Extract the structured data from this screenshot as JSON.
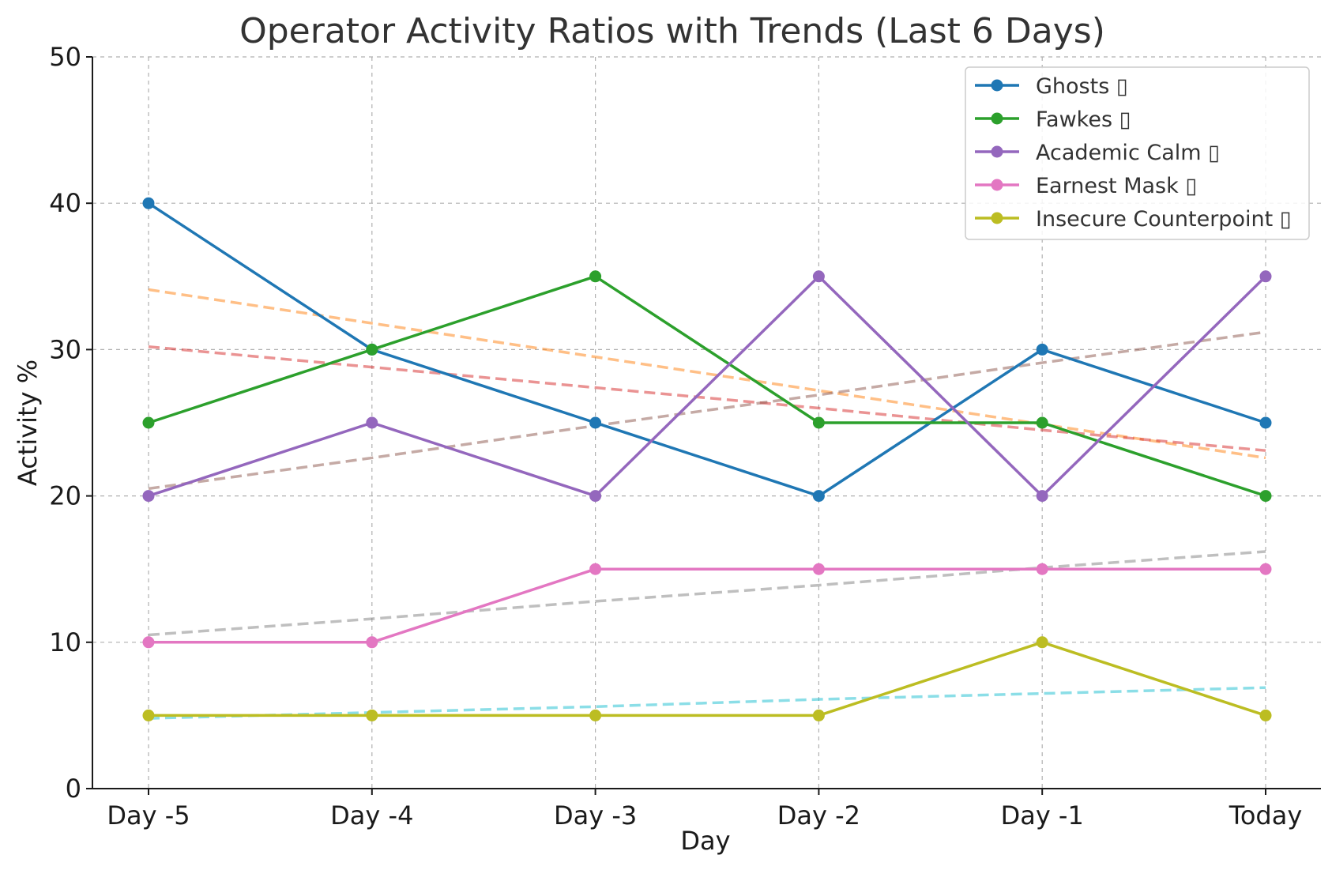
{
  "chart_data": {
    "type": "line",
    "title": "Operator Activity Ratios with Trends (Last 6 Days)",
    "xlabel": "Day",
    "ylabel": "Activity %",
    "categories": [
      "Day -5",
      "Day -4",
      "Day -3",
      "Day -2",
      "Day -1",
      "Today"
    ],
    "ylim": [
      0,
      50
    ],
    "yticks": [
      0,
      10,
      20,
      30,
      40,
      50
    ],
    "grid": true,
    "legend_position": "top-right",
    "series": [
      {
        "name": "Ghosts ▯",
        "color": "#1f77b4",
        "values": [
          40,
          30,
          25,
          20,
          30,
          25
        ]
      },
      {
        "name": "Fawkes ▯",
        "color": "#2ca02c",
        "values": [
          25,
          30,
          35,
          25,
          25,
          20
        ]
      },
      {
        "name": "Academic Calm ▯",
        "color": "#9467bd",
        "values": [
          20,
          25,
          20,
          35,
          20,
          35
        ]
      },
      {
        "name": "Earnest Mask ▯",
        "color": "#e377c2",
        "values": [
          10,
          10,
          15,
          15,
          15,
          15
        ]
      },
      {
        "name": "Insecure Counterpoint ▯",
        "color": "#bcbd22",
        "values": [
          5,
          5,
          5,
          5,
          10,
          5
        ]
      }
    ],
    "trend_lines": [
      {
        "color": "#ff7f0e",
        "values": [
          34.1,
          31.8,
          29.5,
          27.2,
          24.9,
          22.6
        ]
      },
      {
        "color": "#d62728",
        "values": [
          30.2,
          28.8,
          27.4,
          26.0,
          24.5,
          23.1
        ]
      },
      {
        "color": "#8c564b",
        "values": [
          20.5,
          22.6,
          24.8,
          26.9,
          29.1,
          31.2
        ]
      },
      {
        "color": "#7f7f7f",
        "values": [
          10.5,
          11.6,
          12.8,
          13.9,
          15.1,
          16.2
        ]
      },
      {
        "color": "#17becf",
        "values": [
          4.8,
          5.2,
          5.6,
          6.1,
          6.5,
          6.9
        ]
      }
    ]
  }
}
